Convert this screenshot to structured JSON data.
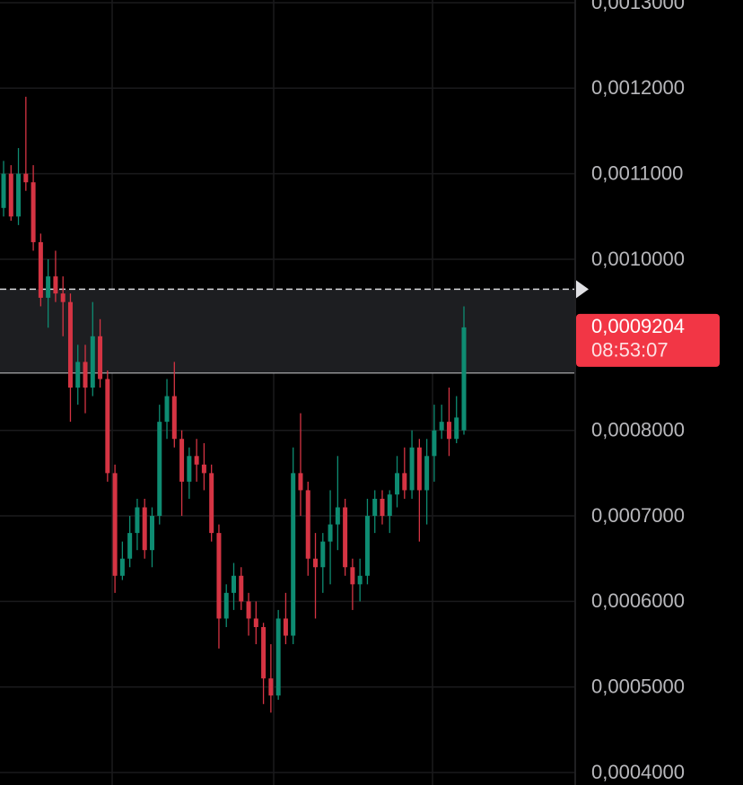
{
  "chart_data": {
    "type": "candlestick",
    "up_color": "#0e8c72",
    "down_color": "#d53443",
    "ylim": [
      0.0003854,
      0.0013031
    ],
    "yticks": [
      {
        "value": 0.0004,
        "label": "0,0004000"
      },
      {
        "value": 0.0005,
        "label": "0,0005000"
      },
      {
        "value": 0.0006,
        "label": "0,0006000"
      },
      {
        "value": 0.0007,
        "label": "0,0007000"
      },
      {
        "value": 0.0008,
        "label": "0,0008000"
      },
      {
        "value": 0.001,
        "label": "0,0010000"
      },
      {
        "value": 0.0011,
        "label": "0,0011000"
      },
      {
        "value": 0.0012,
        "label": "0,0012000"
      },
      {
        "value": 0.0013,
        "label": "0,0013000"
      }
    ],
    "grid": true,
    "zone": {
      "high": 0.000965,
      "low": 0.000867
    },
    "current_price": {
      "value": 0.0009204,
      "label": "0,0009204"
    },
    "countdown": "08:53:07",
    "open": [
      0.00106,
      0.0011,
      0.00105,
      0.0011,
      0.00109,
      0.00102,
      0.000955,
      0.00098,
      0.00096,
      0.00095,
      0.00085,
      0.00088,
      0.00085,
      0.00091,
      0.00086,
      0.00075,
      0.00063,
      0.00065,
      0.00068,
      0.00071,
      0.00066,
      0.0007,
      0.00081,
      0.00084,
      0.00079,
      0.00074,
      0.00077,
      0.00076,
      0.00075,
      0.00068,
      0.00058,
      0.00061,
      0.00063,
      0.0006,
      0.00058,
      0.00057,
      0.00051,
      0.00049,
      0.00058,
      0.00056,
      0.00075,
      0.00073,
      0.00065,
      0.00064,
      0.00067,
      0.00069,
      0.00071,
      0.00064,
      0.00062,
      0.00063,
      0.0007,
      0.00072,
      0.0007,
      0.000725,
      0.00075,
      0.00073,
      0.00078,
      0.00073,
      0.00077,
      0.0008,
      0.00081,
      0.00079,
      0.0008
    ],
    "high": [
      0.001115,
      0.00111,
      0.00113,
      0.00119,
      0.00111,
      0.00103,
      0.001,
      0.00101,
      0.00098,
      0.00096,
      0.0009,
      0.0009,
      0.00095,
      0.00093,
      0.00087,
      0.00076,
      0.00067,
      0.0007,
      0.00072,
      0.00072,
      0.00071,
      0.00083,
      0.00086,
      0.00088,
      0.0008,
      0.00078,
      0.00079,
      0.000785,
      0.00076,
      0.00069,
      0.00062,
      0.000645,
      0.00064,
      0.00061,
      0.0006,
      0.000575,
      0.00055,
      0.00059,
      0.00061,
      0.00078,
      0.00082,
      0.00074,
      0.00068,
      0.00068,
      0.00073,
      0.00077,
      0.00072,
      0.00065,
      0.00065,
      0.00072,
      0.00073,
      0.00073,
      0.00073,
      0.00077,
      0.00078,
      0.0008,
      0.00079,
      0.00079,
      0.00083,
      0.00083,
      0.00085,
      0.00084,
      0.000945
    ],
    "low": [
      0.00105,
      0.001045,
      0.00104,
      0.00108,
      0.00101,
      0.000945,
      0.00092,
      0.00095,
      0.00091,
      0.00081,
      0.00083,
      0.00082,
      0.00084,
      0.00085,
      0.00074,
      0.00061,
      0.000625,
      0.00064,
      0.00066,
      0.00065,
      0.00064,
      0.00069,
      0.00079,
      0.00078,
      0.0007,
      0.00072,
      0.00074,
      0.00073,
      0.00067,
      0.000545,
      0.00057,
      0.00059,
      0.00059,
      0.00056,
      0.00055,
      0.00048,
      0.00047,
      0.000485,
      0.00055,
      0.00055,
      0.0007,
      0.00063,
      0.00058,
      0.00061,
      0.00062,
      0.00066,
      0.00063,
      0.00059,
      0.0006,
      0.00062,
      0.00068,
      0.00069,
      0.00068,
      0.00071,
      0.00072,
      0.00072,
      0.00067,
      0.00069,
      0.00074,
      0.00079,
      0.00077,
      0.000785,
      0.000795
    ],
    "close": [
      0.0011,
      0.00105,
      0.0011,
      0.00109,
      0.00102,
      0.000955,
      0.00098,
      0.00096,
      0.00095,
      0.00085,
      0.00088,
      0.00085,
      0.00091,
      0.00086,
      0.00075,
      0.00063,
      0.00065,
      0.00068,
      0.00071,
      0.00066,
      0.0007,
      0.00081,
      0.00084,
      0.00079,
      0.00074,
      0.00077,
      0.00076,
      0.00075,
      0.00068,
      0.00058,
      0.00061,
      0.00063,
      0.0006,
      0.00058,
      0.00057,
      0.00051,
      0.00049,
      0.00058,
      0.00056,
      0.00075,
      0.00073,
      0.00065,
      0.00064,
      0.00067,
      0.00069,
      0.00071,
      0.00064,
      0.00062,
      0.00063,
      0.0007,
      0.00072,
      0.0007,
      0.000725,
      0.00075,
      0.00073,
      0.00078,
      0.00073,
      0.00077,
      0.0008,
      0.00081,
      0.00079,
      0.000815,
      0.0009204
    ]
  }
}
